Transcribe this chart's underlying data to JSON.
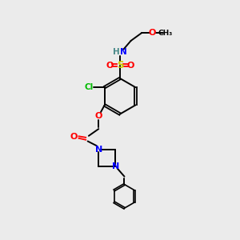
{
  "bg_color": "#ebebeb",
  "colors": {
    "N": "#0000ff",
    "O": "#ff0000",
    "S": "#cccc00",
    "Cl": "#00bb00",
    "C": "#000000",
    "H": "#4a8a8a"
  }
}
